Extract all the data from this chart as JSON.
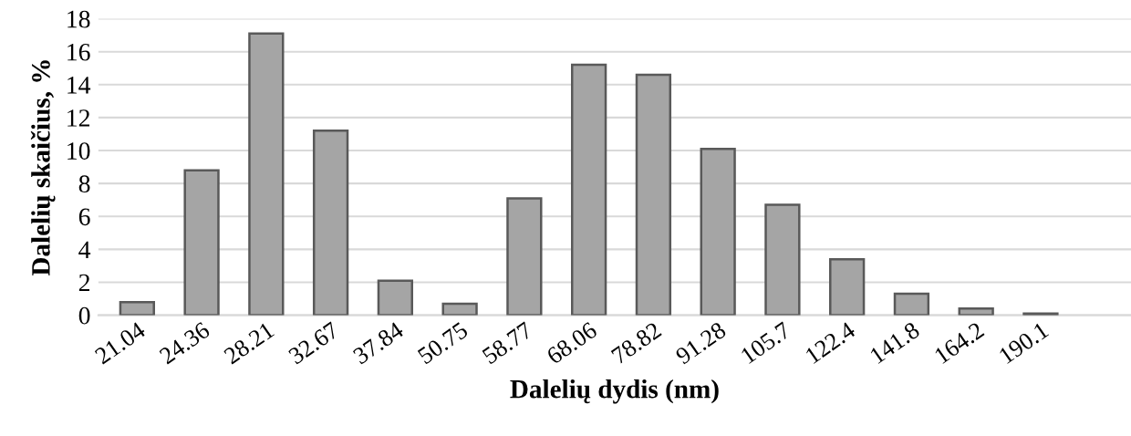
{
  "chart_data": {
    "type": "bar",
    "xlabel": "Dalelių dydis (nm)",
    "ylabel": "Dalelių skaičius, %",
    "categories": [
      "21.04",
      "24.36",
      "28.21",
      "32.67",
      "37.84",
      "50.75",
      "58.77",
      "68.06",
      "78.82",
      "91.28",
      "105.7",
      "122.4",
      "141.8",
      "164.2",
      "190.1",
      null
    ],
    "values": [
      0.8,
      8.8,
      17.1,
      11.2,
      2.1,
      0.7,
      7.1,
      15.2,
      14.6,
      10.1,
      6.7,
      3.4,
      1.3,
      0.4,
      0.1,
      null
    ],
    "color": "#a5a5a5",
    "ylim": [
      0,
      18
    ],
    "yticks": [
      0,
      2,
      4,
      6,
      8,
      10,
      12,
      14,
      16,
      18
    ],
    "grid": "y",
    "legend": false
  }
}
